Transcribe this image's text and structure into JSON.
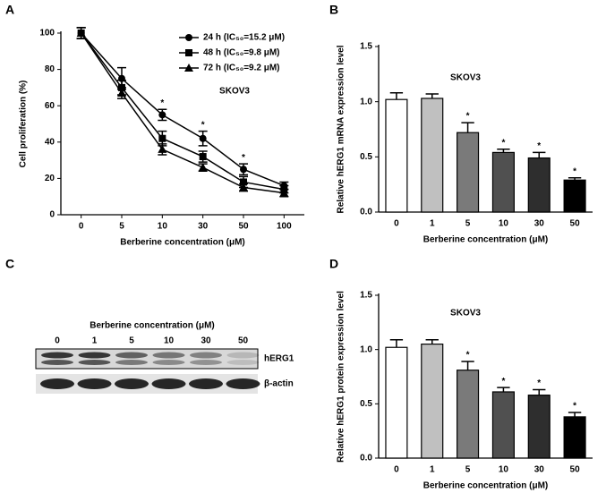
{
  "chart_data": [
    {
      "type": "line",
      "panel": "A",
      "annotation": "SKOV3",
      "xlabel": "Berberine concentration (μM)",
      "ylabel": "Cell proliferation (%)",
      "categories": [
        "0",
        "5",
        "10",
        "30",
        "50",
        "100"
      ],
      "ylim": [
        0,
        100
      ],
      "yticks": [
        0,
        20,
        40,
        60,
        80,
        100
      ],
      "legend": "upper right",
      "series": [
        {
          "name": "24 h (IC₅₀=15.2 μM)",
          "color": "#000000",
          "marker": "circle",
          "values": [
            100,
            75,
            55,
            42,
            25,
            16
          ],
          "errors": [
            3,
            6,
            3,
            4,
            3,
            2
          ]
        },
        {
          "name": "48 h (IC₅₀=9.8 μM)",
          "color": "#000000",
          "marker": "square",
          "values": [
            100,
            70,
            42,
            32,
            18,
            14
          ],
          "errors": [
            3,
            4,
            4,
            3,
            3,
            2
          ]
        },
        {
          "name": "72 h (IC₅₀=9.2 μM)",
          "color": "#000000",
          "marker": "triangle",
          "values": [
            100,
            67,
            36,
            26,
            15,
            12
          ],
          "errors": [
            3,
            3,
            3,
            2,
            2,
            2
          ]
        }
      ],
      "significance": [
        null,
        null,
        "*",
        "*",
        "*",
        null
      ]
    },
    {
      "type": "bar",
      "panel": "B",
      "annotation": "SKOV3",
      "xlabel": "Berberine concentration (μM)",
      "ylabel": "Relative hERG1 mRNA expression level",
      "categories": [
        "0",
        "1",
        "5",
        "10",
        "30",
        "50"
      ],
      "values": [
        1.02,
        1.03,
        0.72,
        0.54,
        0.49,
        0.29
      ],
      "errors": [
        0.06,
        0.04,
        0.09,
        0.03,
        0.05,
        0.02
      ],
      "colors": [
        "#ffffff",
        "#c0c0c0",
        "#7a7a7a",
        "#505050",
        "#2e2e2e",
        "#000000"
      ],
      "ylim": [
        0,
        1.5
      ],
      "yticks": [
        {
          "value": 0,
          "label": "0.0"
        },
        0.5,
        {
          "value": 1,
          "label": "1.0"
        },
        1.5
      ],
      "significance": [
        null,
        null,
        "*",
        "*",
        "*",
        "*"
      ]
    },
    {
      "type": "bar",
      "panel": "D",
      "annotation": "SKOV3",
      "xlabel": "Berberine concentration (μM)",
      "ylabel": "Relative hERG1 protein expression level",
      "categories": [
        "0",
        "1",
        "5",
        "10",
        "30",
        "50"
      ],
      "values": [
        1.02,
        1.05,
        0.81,
        0.61,
        0.58,
        0.38
      ],
      "errors": [
        0.07,
        0.04,
        0.08,
        0.04,
        0.05,
        0.04
      ],
      "colors": [
        "#ffffff",
        "#c0c0c0",
        "#7a7a7a",
        "#505050",
        "#2e2e2e",
        "#000000"
      ],
      "ylim": [
        0,
        1.5
      ],
      "yticks": [
        {
          "value": 0,
          "label": "0.0"
        },
        0.5,
        {
          "value": 1,
          "label": "1.0"
        },
        1.5
      ],
      "significance": [
        null,
        null,
        "*",
        "*",
        "*",
        "*"
      ]
    }
  ],
  "blot": {
    "panel": "C",
    "title": "Berberine concentration (μM)",
    "lanes": [
      "0",
      "1",
      "5",
      "10",
      "30",
      "50"
    ],
    "rows": [
      "hERG1",
      "β-actin"
    ]
  }
}
